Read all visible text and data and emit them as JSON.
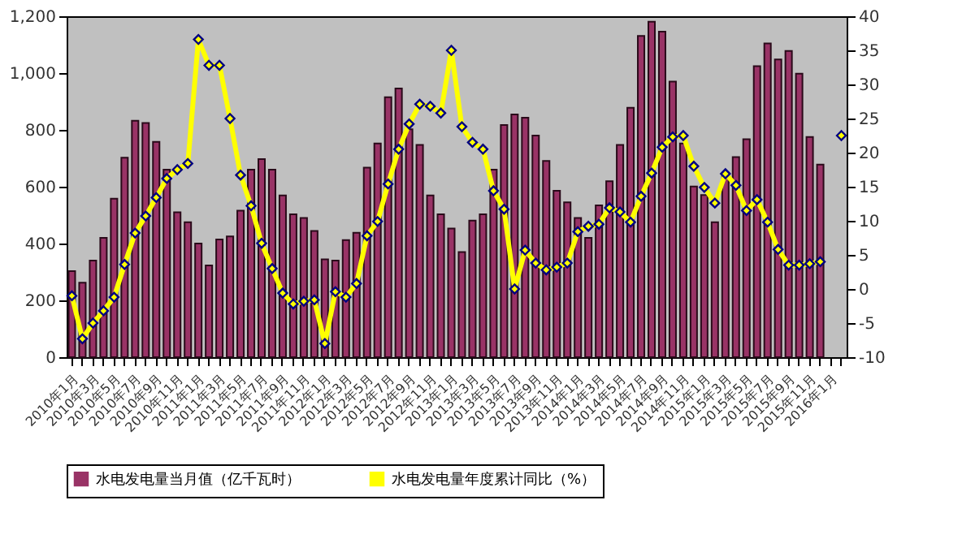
{
  "chart_data": {
    "type": "bar",
    "categories": [
      "2010年1月",
      null,
      "2010年3月",
      null,
      "2010年5月",
      null,
      "2010年7月",
      null,
      "2010年9月",
      null,
      "2010年11月",
      null,
      "2011年1月",
      null,
      "2011年3月",
      null,
      "2011年5月",
      null,
      "2011年7月",
      null,
      "2011年9月",
      null,
      "2011年11月",
      null,
      "2012年1月",
      null,
      "2012年3月",
      null,
      "2012年5月",
      null,
      "2012年7月",
      null,
      "2012年9月",
      null,
      "2012年11月",
      null,
      "2013年1月",
      null,
      "2013年3月",
      null,
      "2013年5月",
      null,
      "2013年7月",
      null,
      "2013年9月",
      null,
      "2013年11月",
      null,
      "2014年1月",
      null,
      "2014年3月",
      null,
      "2014年5月",
      null,
      "2014年7月",
      null,
      "2014年9月",
      null,
      "2014年11月",
      null,
      "2015年1月",
      null,
      "2015年3月",
      null,
      "2015年5月",
      null,
      "2015年7月",
      null,
      "2015年9月",
      null,
      "2015年11月",
      null,
      "2016年1月",
      null
    ],
    "series": [
      {
        "name": "水电发电量当月值（亿千瓦时）",
        "color": "#993366",
        "values": [
          303,
          262,
          340,
          420,
          558,
          702,
          832,
          824,
          758,
          660,
          510,
          475,
          400,
          323,
          414,
          425,
          516,
          660,
          697,
          660,
          569,
          503,
          490,
          444,
          344,
          340,
          412,
          438,
          667,
          752,
          915,
          946,
          802,
          747,
          569,
          503,
          453,
          370,
          481,
          503,
          660,
          817,
          854,
          843,
          780,
          691,
          586,
          545,
          490,
          420,
          534,
          619,
          747,
          878,
          1131,
          1181,
          1146,
          970,
          752,
          601,
          571,
          475,
          640,
          704,
          767,
          1024,
          1104,
          1048,
          1078,
          998,
          775,
          678,
          null,
          null
        ]
      },
      {
        "name": "水电发电量年度累计同比（%）",
        "type": "line",
        "axis": "y2",
        "color": "#ffff00",
        "marker": "diamond",
        "values": [
          -1,
          -7.3,
          -5,
          -3.2,
          -1.2,
          3.6,
          8.2,
          10.7,
          13.4,
          16.2,
          17.5,
          18.4,
          36.6,
          32.8,
          32.8,
          25,
          16.7,
          12.2,
          6.7,
          3,
          -0.6,
          -2.2,
          -1.8,
          -1.6,
          -8,
          -0.4,
          -1.2,
          0.8,
          7.8,
          9.9,
          15.4,
          20.5,
          24.2,
          27.1,
          26.8,
          25.8,
          35,
          23.8,
          21.5,
          20.5,
          14.4,
          11.7,
          0,
          5.7,
          3.8,
          2.8,
          3.2,
          3.8,
          8.4,
          9.2,
          9.5,
          11.9,
          11.3,
          9.8,
          13.6,
          17,
          20.8,
          22.3,
          22.5,
          18,
          14.9,
          12.6,
          16.9,
          15.2,
          11.5,
          13.1,
          9.8,
          5.8,
          3.5,
          3.5,
          3.7,
          4,
          null,
          22.5
        ]
      }
    ],
    "ylim": [
      0,
      1200
    ],
    "yticks": [
      {
        "value": 0,
        "label": "0"
      },
      {
        "value": 200,
        "label": "200"
      },
      {
        "value": 400,
        "label": "400"
      },
      {
        "value": 600,
        "label": "600"
      },
      {
        "value": 800,
        "label": "800"
      },
      {
        "value": 1000,
        "label": "1,000"
      },
      {
        "value": 1200,
        "label": "1,200"
      }
    ],
    "y2lim": [
      -10,
      40
    ],
    "y2ticks": [
      -10,
      -5,
      0,
      5,
      10,
      15,
      20,
      25,
      30,
      35,
      40
    ],
    "grid": false,
    "legend": "bottom"
  }
}
